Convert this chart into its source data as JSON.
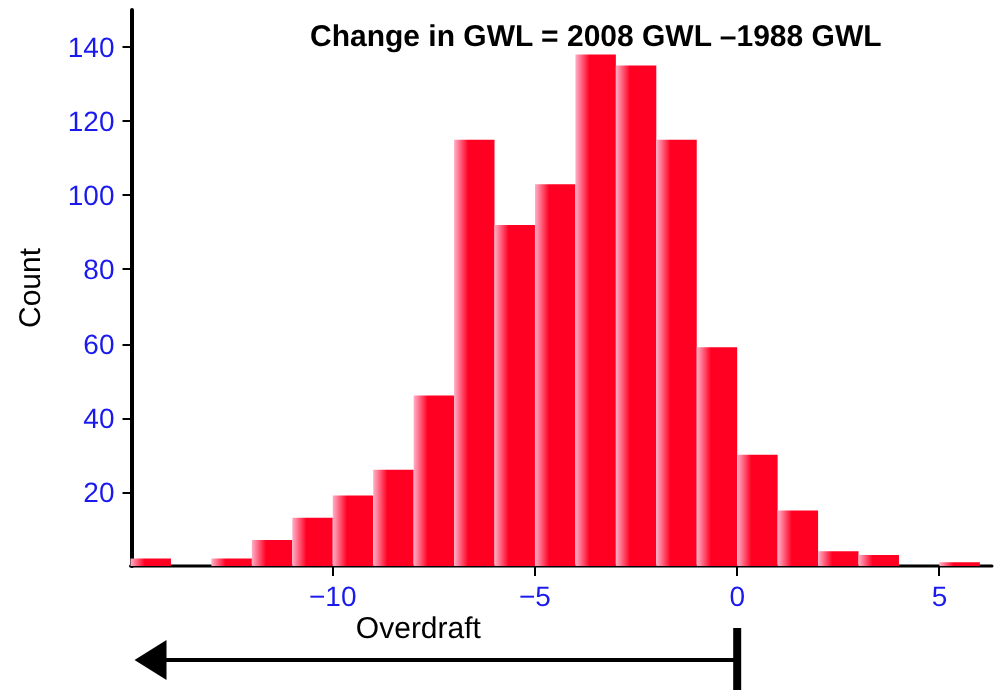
{
  "chart_data": {
    "type": "histogram",
    "title": "Change in GWL = 2008 GWL –1988 GWL",
    "ylabel": "Count",
    "bins": [
      -15,
      -14,
      -13,
      -12,
      -11,
      -10,
      -9,
      -8,
      -7,
      -6,
      -5,
      -4,
      -3,
      -2,
      -1,
      0,
      1,
      2,
      3,
      4,
      5,
      6
    ],
    "values": [
      2,
      0,
      2,
      7,
      13,
      19,
      26,
      46,
      115,
      92,
      103,
      138,
      135,
      115,
      59,
      30,
      15,
      4,
      3,
      0,
      1
    ],
    "color": "#ff0022",
    "xlim": [
      -15,
      6.3
    ],
    "xticks": [
      {
        "value": -10,
        "label": "−10"
      },
      {
        "value": -5,
        "label": "−5"
      },
      0,
      5
    ],
    "ylim": [
      0,
      150
    ],
    "yticks": [
      20,
      40,
      60,
      80,
      100,
      120,
      140
    ],
    "annotations": [
      "Overdraft"
    ],
    "grid": false
  }
}
